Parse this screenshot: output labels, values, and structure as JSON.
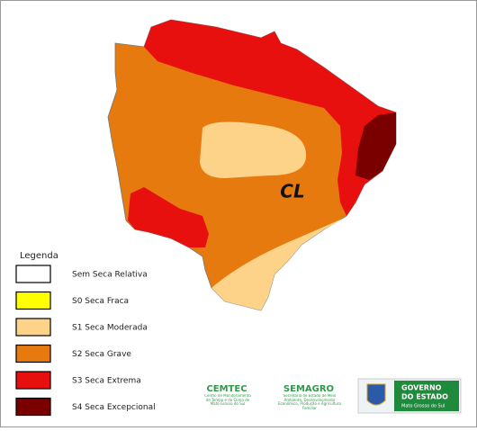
{
  "map": {
    "region_label": "CL"
  },
  "legend": {
    "title": "Legenda",
    "items": [
      {
        "label": "Sem Seca Relativa",
        "color": "#ffffff"
      },
      {
        "label": "S0 Seca Fraca",
        "color": "#ffff00"
      },
      {
        "label": "S1 Seca Moderada",
        "color": "#fdd38a"
      },
      {
        "label": "S2 Seca Grave",
        "color": "#e67a0e"
      },
      {
        "label": "S3 Seca Extrema",
        "color": "#e8100e"
      },
      {
        "label": "S4 Seca Excepcional",
        "color": "#7a0000"
      }
    ]
  },
  "logos": {
    "cemtec": {
      "name": "CEMTEC",
      "subtitle": "Centro de Monitoramento de Tempo e do Clima de Mato Grosso do Sul"
    },
    "semagro": {
      "name": "SEMAGRO",
      "subtitle": "Secretaria de Estado de Meio Ambiente, Desenvolvimento Econômico, Produção e Agricultura Familiar"
    },
    "governo": {
      "line1": "GOVERNO",
      "line2": "DO ESTADO",
      "state": "Mato Grosso do Sul"
    }
  }
}
